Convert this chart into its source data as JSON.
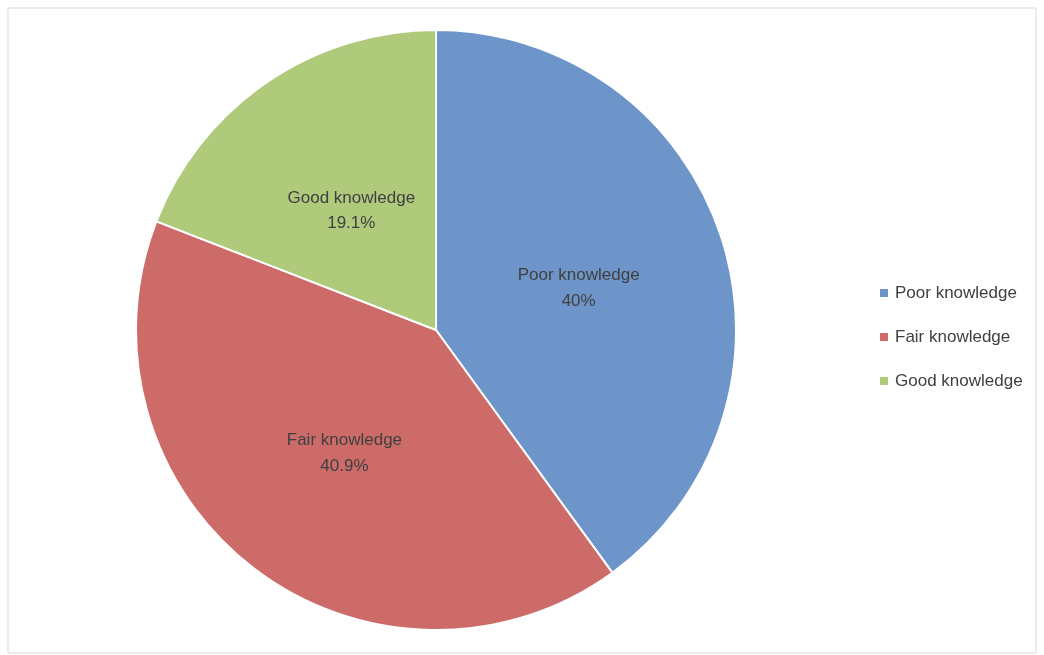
{
  "chart_data": {
    "type": "pie",
    "categories": [
      "Poor knowledge",
      "Fair knowledge",
      "Good knowledge"
    ],
    "values": [
      40,
      40.9,
      19.1
    ],
    "value_labels": [
      "40%",
      "40.9%",
      "19.1%"
    ],
    "colors": [
      "#6d95c9",
      "#cd6b69",
      "#b0ca7c"
    ],
    "legend": "right"
  }
}
